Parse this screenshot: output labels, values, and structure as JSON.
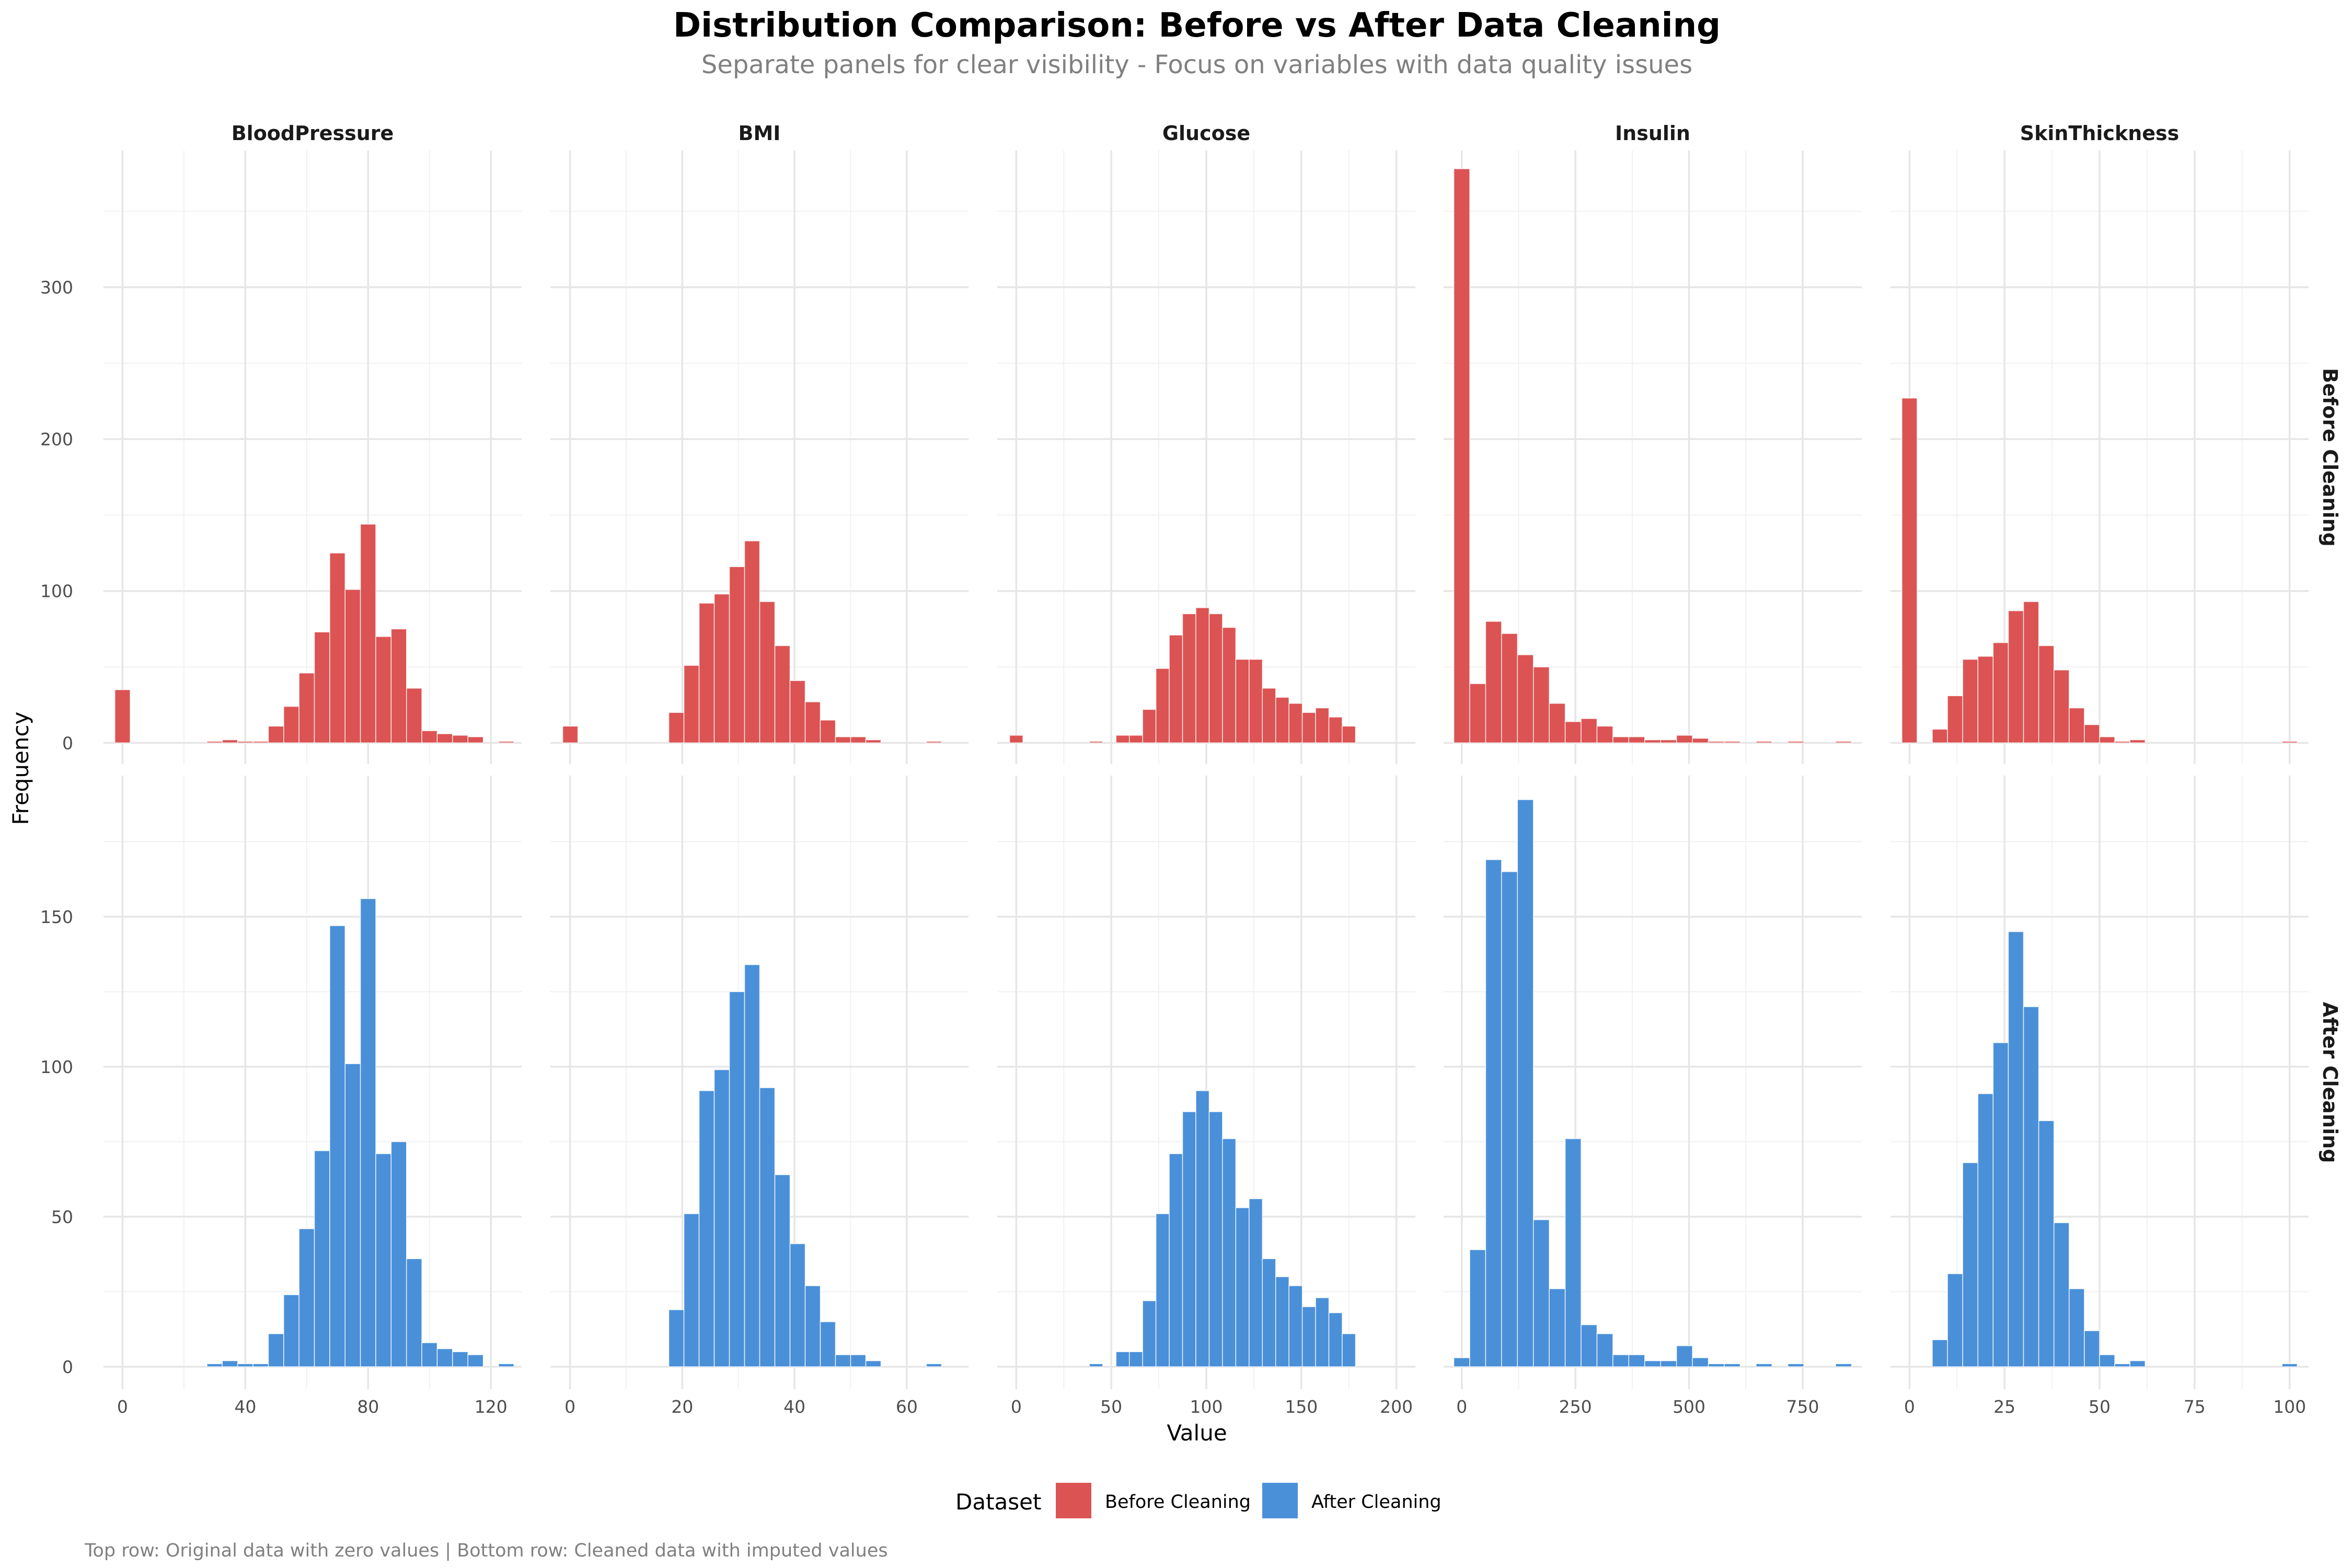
{
  "chart_data": {
    "type": "histogram-facet-grid",
    "title": "Distribution Comparison: Before vs After Data Cleaning",
    "subtitle": "Separate panels for clear visibility - Focus on variables with data quality issues",
    "xlabel": "Value",
    "ylabel": "Frequency",
    "caption": "Top row: Original data with zero values | Bottom row: Cleaned data with imputed values",
    "legend": {
      "title": "Dataset",
      "position": "bottom",
      "entries": [
        {
          "label": "Before Cleaning",
          "color": "#dc5353"
        },
        {
          "label": "After Cleaning",
          "color": "#4a90d9"
        }
      ]
    },
    "rows": [
      {
        "label": "Before Cleaning",
        "color": "#dc5353",
        "ylim": [
          -14,
          390
        ],
        "yticks": [
          0,
          100,
          200,
          300
        ]
      },
      {
        "label": "After Cleaning",
        "color": "#4a90d9",
        "ylim": [
          -7.5,
          197
        ],
        "yticks": [
          0,
          50,
          100,
          150
        ]
      }
    ],
    "columns": [
      {
        "label": "BloodPressure",
        "xlim": [
          -6.2,
          130
        ],
        "xticks": [
          0,
          40,
          80,
          120
        ],
        "bin_start": -2.5,
        "bin_width": 5,
        "series": [
          {
            "name": "Before Cleaning",
            "values": [
              35,
              0,
              0,
              0,
              0,
              0,
              1,
              2,
              1,
              1,
              11,
              24,
              46,
              73,
              125,
              101,
              144,
              70,
              75,
              36,
              8,
              6,
              5,
              4,
              0,
              1
            ]
          },
          {
            "name": "After Cleaning",
            "values": [
              0,
              0,
              0,
              0,
              0,
              0,
              1,
              2,
              1,
              1,
              11,
              24,
              46,
              72,
              147,
              101,
              156,
              71,
              75,
              36,
              8,
              6,
              5,
              4,
              0,
              1
            ]
          }
        ]
      },
      {
        "label": "BMI",
        "xlim": [
          -3.5,
          71
        ],
        "xticks": [
          0,
          20,
          40,
          60
        ],
        "bin_start": -1.3,
        "bin_width": 2.7,
        "series": [
          {
            "name": "Before Cleaning",
            "values": [
              11,
              0,
              0,
              0,
              0,
              0,
              0,
              20,
              51,
              92,
              98,
              116,
              133,
              93,
              64,
              41,
              27,
              15,
              4,
              4,
              2,
              0,
              0,
              0,
              1
            ]
          },
          {
            "name": "After Cleaning",
            "values": [
              0,
              0,
              0,
              0,
              0,
              0,
              0,
              19,
              51,
              92,
              99,
              125,
              134,
              93,
              64,
              41,
              27,
              15,
              4,
              4,
              2,
              0,
              0,
              0,
              1
            ]
          }
        ]
      },
      {
        "label": "Glucose",
        "xlim": [
          -10,
          210
        ],
        "xticks": [
          0,
          50,
          100,
          150,
          200
        ],
        "bin_start": -3.5,
        "bin_width": 7,
        "series": [
          {
            "name": "Before Cleaning",
            "values": [
              5,
              0,
              0,
              0,
              0,
              0,
              1,
              0,
              5,
              5,
              22,
              49,
              71,
              85,
              89,
              85,
              76,
              55,
              55,
              36,
              30,
              26,
              20,
              23,
              17,
              11
            ]
          },
          {
            "name": "After Cleaning",
            "values": [
              0,
              0,
              0,
              0,
              0,
              0,
              1,
              0,
              5,
              5,
              22,
              51,
              71,
              85,
              92,
              85,
              76,
              53,
              56,
              36,
              30,
              27,
              20,
              23,
              18,
              11
            ]
          }
        ]
      },
      {
        "label": "Insulin",
        "xlim": [
          -40,
          880
        ],
        "xticks": [
          0,
          250,
          500,
          750
        ],
        "bin_start": -17.5,
        "bin_width": 35,
        "series": [
          {
            "name": "Before Cleaning",
            "values": [
              378,
              39,
              80,
              72,
              58,
              50,
              26,
              14,
              16,
              11,
              4,
              4,
              2,
              2,
              5,
              3,
              1,
              1,
              0,
              1,
              0,
              1,
              0,
              0,
              1
            ]
          },
          {
            "name": "After Cleaning",
            "values": [
              3,
              39,
              169,
              165,
              189,
              49,
              26,
              76,
              14,
              11,
              4,
              4,
              2,
              2,
              7,
              3,
              1,
              1,
              0,
              1,
              0,
              1,
              0,
              0,
              1
            ]
          }
        ]
      },
      {
        "label": "SkinThickness",
        "xlim": [
          -5,
          105
        ],
        "xticks": [
          0,
          25,
          50,
          75,
          100
        ],
        "bin_start": -2,
        "bin_width": 4,
        "series": [
          {
            "name": "Before Cleaning",
            "values": [
              227,
              0,
              9,
              31,
              55,
              57,
              66,
              87,
              93,
              64,
              48,
              23,
              12,
              4,
              1,
              2,
              0,
              0,
              0,
              0,
              0,
              0,
              0,
              0,
              0,
              1
            ]
          },
          {
            "name": "After Cleaning",
            "values": [
              0,
              0,
              9,
              31,
              68,
              91,
              108,
              145,
              120,
              82,
              48,
              26,
              12,
              4,
              1,
              2,
              0,
              0,
              0,
              0,
              0,
              0,
              0,
              0,
              0,
              1
            ]
          }
        ]
      }
    ]
  }
}
